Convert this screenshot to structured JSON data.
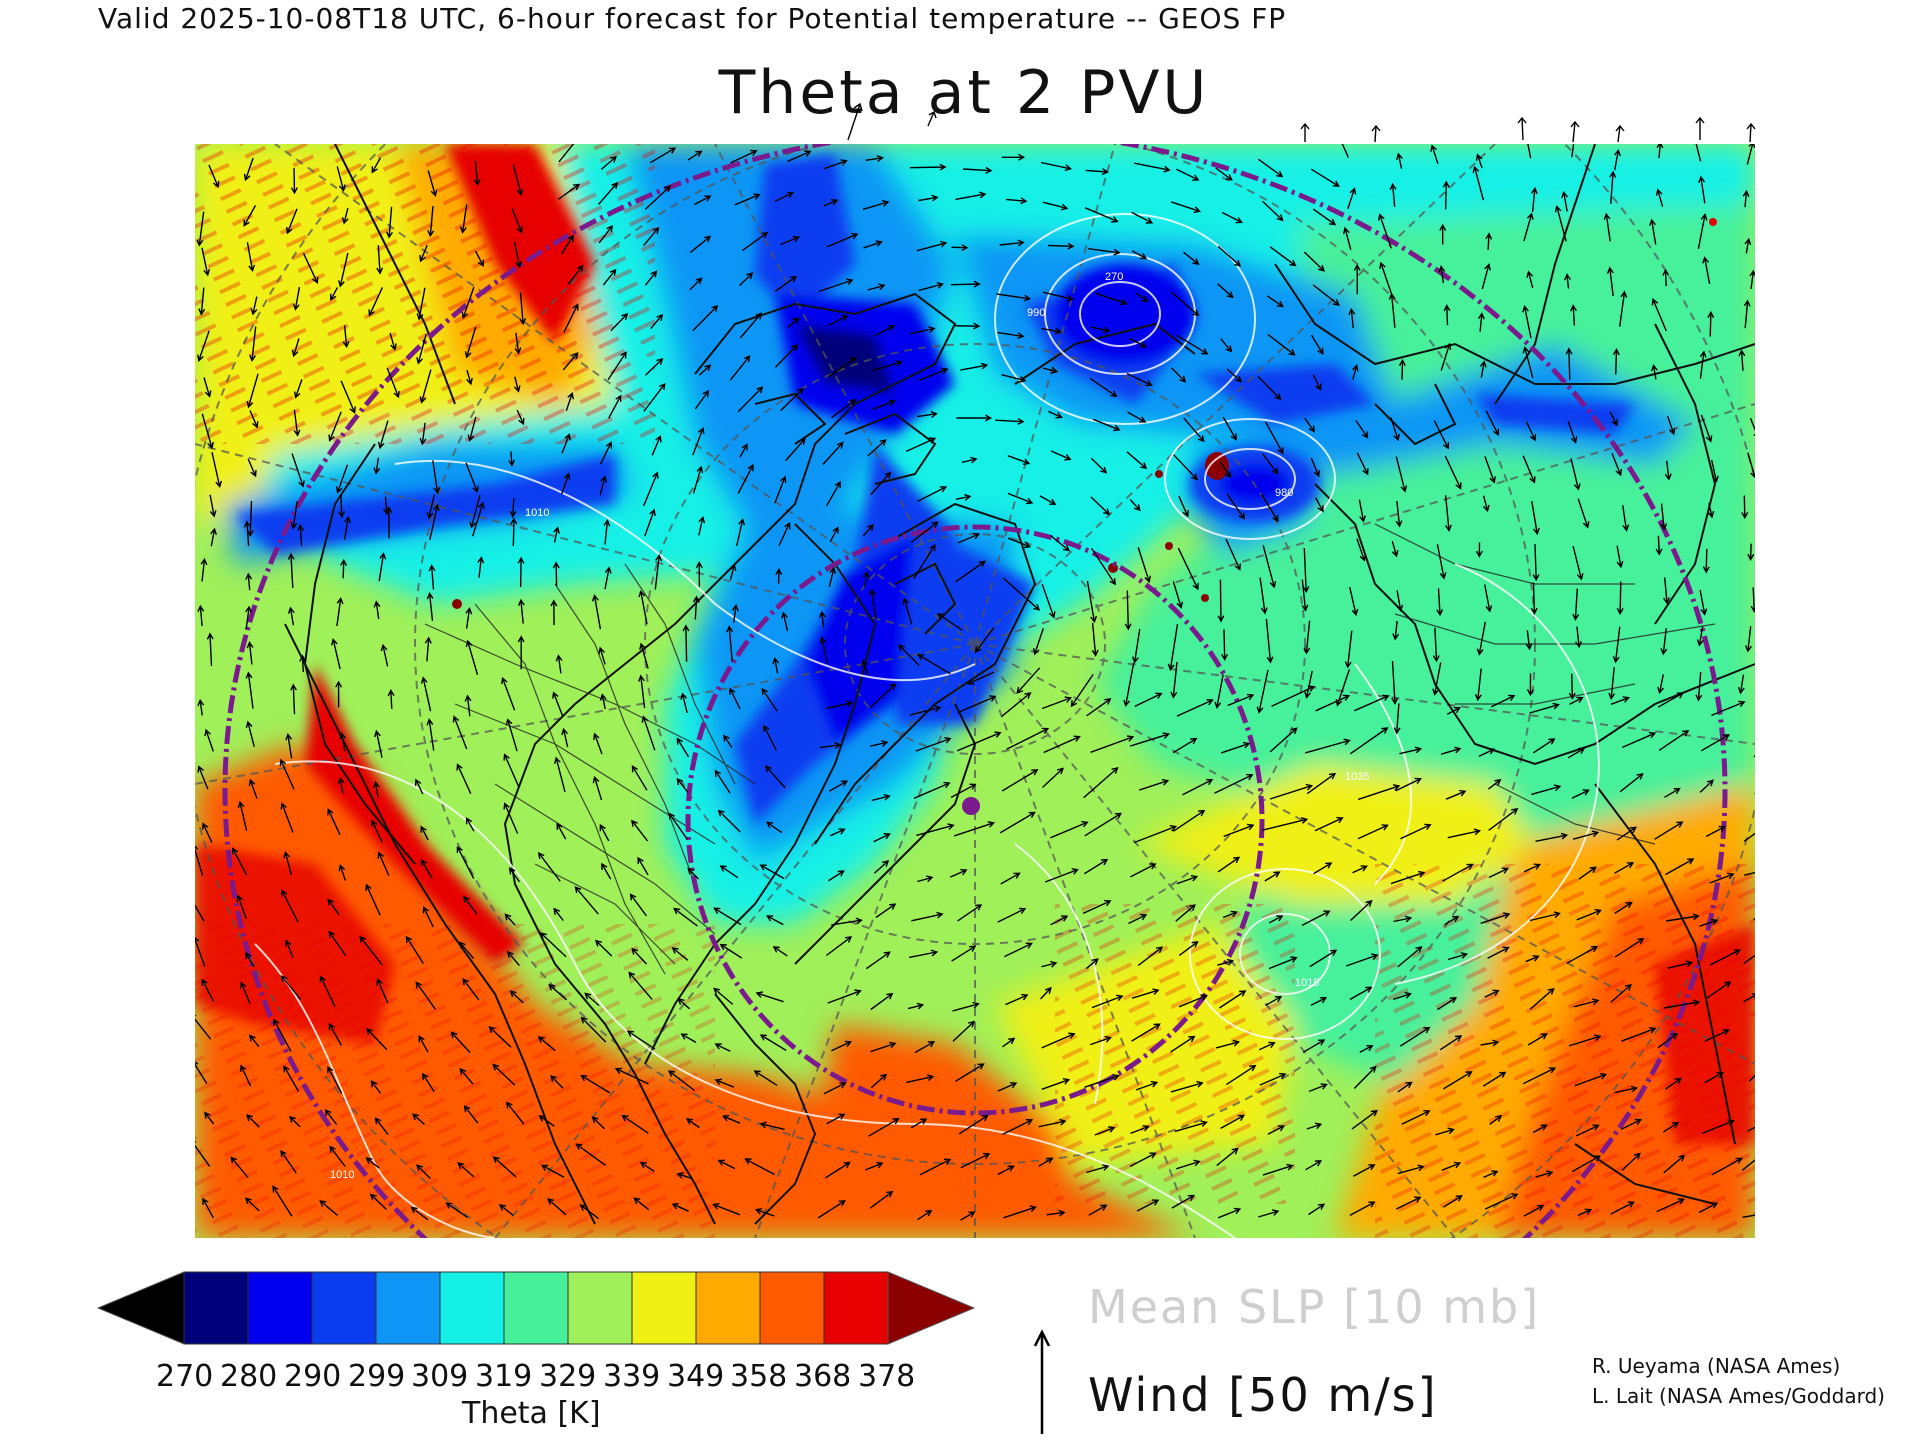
{
  "header": {
    "valid_line": "Valid 2025-10-08T18 UTC, 6-hour forecast for Potential temperature -- GEOS FP",
    "title": "Theta at 2 PVU"
  },
  "colorbar": {
    "title": "Theta [K]",
    "labels": [
      "270",
      "280",
      "290",
      "299",
      "309",
      "319",
      "329",
      "339",
      "349",
      "358",
      "368",
      "378"
    ],
    "under_color": "#000000",
    "over_color": "#8b0000",
    "colors": [
      "#00007a",
      "#0000ee",
      "#0a3cf0",
      "#0d96f5",
      "#14f0e6",
      "#46f09a",
      "#a0f05a",
      "#f0f014",
      "#ffaa00",
      "#ff5a00",
      "#e60000"
    ]
  },
  "legend": {
    "slp": "Mean SLP [10 mb]",
    "wind": "Wind [50 m/s]"
  },
  "credits": {
    "line1": "R. Ueyama (NASA Ames)",
    "line2": "L. Lait (NASA Ames/Goddard)"
  },
  "map": {
    "slp_contour_labels": [
      "990",
      "270",
      "980",
      "1010",
      "1010",
      "1035",
      "1015"
    ],
    "marker_color": "#7a1a8c",
    "circle_color": "#7a1a8c"
  }
}
